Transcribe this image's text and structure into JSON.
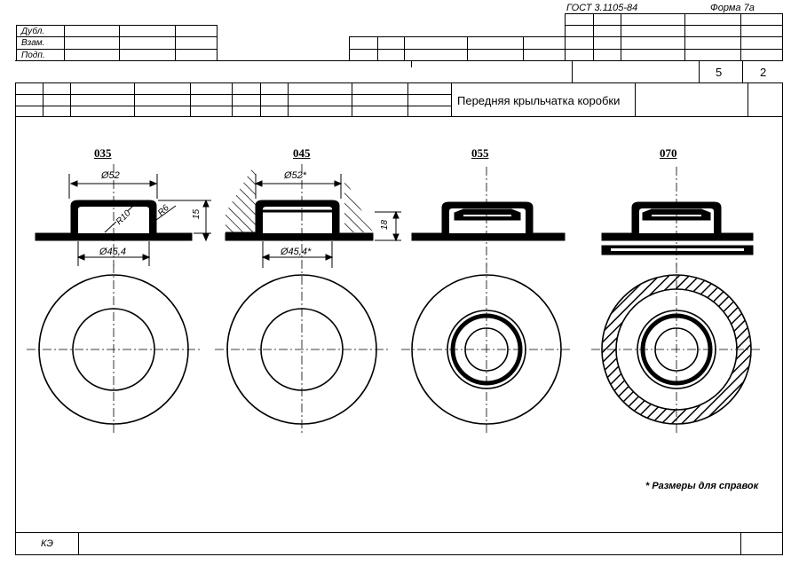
{
  "header": {
    "standard": "ГОСТ 3.1105-84",
    "form": "Форма 7а",
    "rows": [
      "Дубл.",
      "Взам.",
      "Подп."
    ],
    "sheet_total": "5",
    "sheet_number": "2",
    "title": "Передняя крыльчатка коробки"
  },
  "drawings": [
    {
      "code": "035",
      "dims": {
        "outer": "Ø52",
        "inner": "Ø45,4",
        "height": "15",
        "r1": "R10",
        "r2": "R6"
      }
    },
    {
      "code": "045",
      "dims": {
        "outer": "Ø52*",
        "inner": "Ø45,4*",
        "height": "18"
      }
    },
    {
      "code": "055",
      "dims": {}
    },
    {
      "code": "070",
      "dims": {}
    }
  ],
  "note": "* Размеры для справок",
  "footer": {
    "code": "КЭ"
  }
}
